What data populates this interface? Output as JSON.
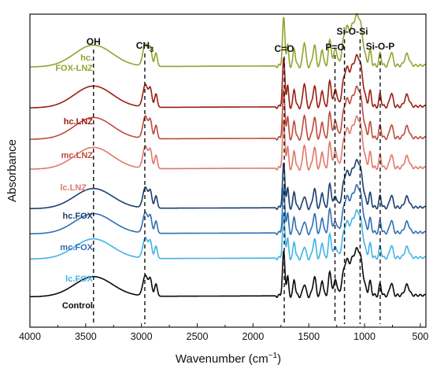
{
  "chart_data": {
    "type": "line",
    "xlabel": "Wavenumber (cm",
    "xlabel_sup": "−1",
    "xlabel_end": ")",
    "ylabel": "Absorbance",
    "xlim": [
      4000,
      450
    ],
    "xticks": [
      4000,
      3500,
      3000,
      2500,
      2000,
      1500,
      1000,
      500
    ],
    "grid": false,
    "peaks": [
      {
        "label": "OH",
        "x": 3430
      },
      {
        "label": "CH",
        "sub": "3",
        "x": 2970
      },
      {
        "label": "C=O",
        "x": 1720
      },
      {
        "label": "P=O",
        "x": 1265
      },
      {
        "label": "Si-O-Si",
        "x": 1040,
        "x2": 1180
      },
      {
        "label": "Si-O-P",
        "x": 860
      }
    ],
    "series": [
      {
        "name": "Control",
        "color": "#0a0a0a",
        "lines": [
          "Control"
        ]
      },
      {
        "name": "lc.FOX",
        "color": "#43b3e6",
        "lines": [
          "lc.FOX"
        ]
      },
      {
        "name": "mc.FOX",
        "color": "#2f6fb4",
        "lines": [
          "mc.FOX"
        ]
      },
      {
        "name": "hc.FOX",
        "color": "#1b3f6e",
        "lines": [
          "hc.FOX"
        ]
      },
      {
        "name": "lc.LNZ",
        "color": "#e0786a",
        "lines": [
          "lc.LNZ"
        ]
      },
      {
        "name": "mc.LNZ",
        "color": "#bf4a3c",
        "lines": [
          "mc.LNZ"
        ]
      },
      {
        "name": "hc.LNZ",
        "color": "#9a1e12",
        "lines": [
          "hc.LNZ"
        ]
      },
      {
        "name": "hc.FOX-LNZ",
        "color": "#94a32e",
        "lines": [
          "hc.",
          "FOX-LNZ"
        ]
      }
    ]
  }
}
